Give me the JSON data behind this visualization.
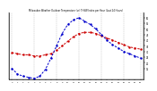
{
  "title": "Milwaukee Weather Outdoor Temperature (vs) THSW Index per Hour (Last 24 Hours)",
  "hours": [
    0,
    1,
    2,
    3,
    4,
    5,
    6,
    7,
    8,
    9,
    10,
    11,
    12,
    13,
    14,
    15,
    16,
    17,
    18,
    19,
    20,
    21,
    22,
    23
  ],
  "temp": [
    29,
    28,
    27,
    27,
    26,
    26,
    27,
    28,
    31,
    35,
    39,
    43,
    46,
    47,
    47,
    46,
    44,
    42,
    40,
    38,
    36,
    34,
    33,
    32
  ],
  "thsw": [
    15,
    10,
    8,
    7,
    6,
    8,
    14,
    24,
    35,
    46,
    54,
    58,
    60,
    57,
    54,
    50,
    45,
    40,
    36,
    33,
    30,
    28,
    26,
    24
  ],
  "temp_color": "#cc0000",
  "thsw_color": "#0000cc",
  "background_color": "#ffffff",
  "ylim": [
    5,
    65
  ],
  "ytick_labels": [
    "--",
    "20",
    "--",
    "30",
    "--",
    "40",
    "--",
    "50",
    "--",
    "60"
  ],
  "ytick_values": [
    15,
    20,
    25,
    30,
    35,
    40,
    45,
    50,
    55,
    60
  ],
  "grid_color": "#888888",
  "grid_x": [
    0,
    4,
    8,
    12,
    16,
    20,
    23
  ]
}
